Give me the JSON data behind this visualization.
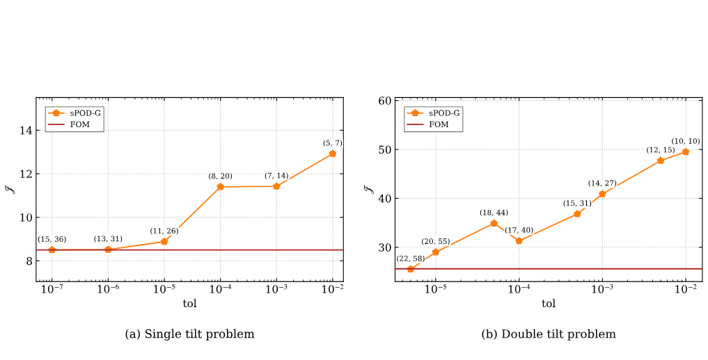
{
  "chart_data": [
    {
      "type": "line",
      "xlabel": "tol",
      "ylabel": "𝒥",
      "log": "x",
      "grid": true,
      "legend": "top left",
      "xlim": [
        5.2e-08,
        0.0155
      ],
      "ylim": [
        7.05,
        15.5
      ],
      "xticks": [
        {
          "value": 1e-07,
          "label": "10$^{−7}$"
        },
        {
          "value": 1e-06,
          "label": "10$^{−6}$"
        },
        {
          "value": 1e-05,
          "label": "10$^{−5}$"
        },
        {
          "value": 0.0001,
          "label": "10$^{−4}$"
        },
        {
          "value": 0.001,
          "label": "10$^{−3}$"
        },
        {
          "value": 0.01,
          "label": "10$^{−2}$"
        }
      ],
      "yticks": [
        8,
        10,
        12,
        14
      ],
      "series": [
        {
          "name": "sPOD-G",
          "color": "#ff7f0e",
          "marker": "circle",
          "x": [
            1e-07,
            1e-06,
            1e-05,
            0.0001,
            0.001,
            0.01
          ],
          "values": [
            8.5,
            8.52,
            8.88,
            11.4,
            11.42,
            12.92
          ],
          "value_labels": [
            "(15, 36)",
            "(13, 31)",
            "(11, 26)",
            "(8, 20)",
            "(7, 14)",
            "(5, 7)"
          ]
        },
        {
          "name": "FOM",
          "color": "#b22222",
          "marker": "none",
          "x": [
            5.2e-08,
            0.0155
          ],
          "values": [
            8.5,
            8.5
          ]
        }
      ],
      "annotations": [
        "(a) Single tilt problem"
      ]
    },
    {
      "type": "line",
      "xlabel": "tol",
      "ylabel": "𝒥",
      "log": "x",
      "grid": true,
      "legend": "top left",
      "xlim": [
        3.25e-06,
        0.0158
      ],
      "ylim": [
        23.0,
        60.6
      ],
      "xticks": [
        {
          "value": 1e-05,
          "label": "10$^{−5}$"
        },
        {
          "value": 0.0001,
          "label": "10$^{−4}$"
        },
        {
          "value": 0.001,
          "label": "10$^{−3}$"
        },
        {
          "value": 0.01,
          "label": "10$^{−2}$"
        }
      ],
      "yticks": [
        30,
        40,
        50,
        60
      ],
      "series": [
        {
          "name": "sPOD-G",
          "color": "#ff7f0e",
          "marker": "circle",
          "x": [
            5e-06,
            1e-05,
            5e-05,
            0.0001,
            0.0005,
            0.001,
            0.005,
            0.01
          ],
          "values": [
            25.5,
            29.0,
            34.9,
            31.3,
            36.8,
            40.9,
            47.7,
            49.5
          ],
          "value_labels": [
            "(22, 58)",
            "(20, 55)",
            "(18, 44)",
            "(17, 40)",
            "(15, 31)",
            "(14, 27)",
            "(12, 15)",
            "(10, 10)"
          ]
        },
        {
          "name": "FOM",
          "color": "#b22222",
          "marker": "none",
          "x": [
            3.25e-06,
            0.0158
          ],
          "values": [
            25.6,
            25.6
          ]
        }
      ],
      "annotations": [
        "(b) Double tilt problem"
      ]
    }
  ]
}
